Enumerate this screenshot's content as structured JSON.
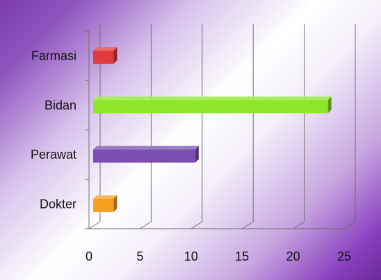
{
  "chart_data": {
    "type": "bar",
    "orientation": "horizontal",
    "style": "3d",
    "categories": [
      "Farmasi",
      "Bidan",
      "Perawat",
      "Dokter"
    ],
    "values": [
      2,
      23,
      10,
      2
    ],
    "colors": [
      "#e23b3b",
      "#8ee62a",
      "#7a4fb0",
      "#f7a020"
    ],
    "xticks": [
      "0",
      "5",
      "10",
      "15",
      "20",
      "25"
    ],
    "xlim": [
      0,
      25
    ],
    "title": "",
    "xlabel": "",
    "ylabel": "",
    "grid": true,
    "legend": "none"
  }
}
